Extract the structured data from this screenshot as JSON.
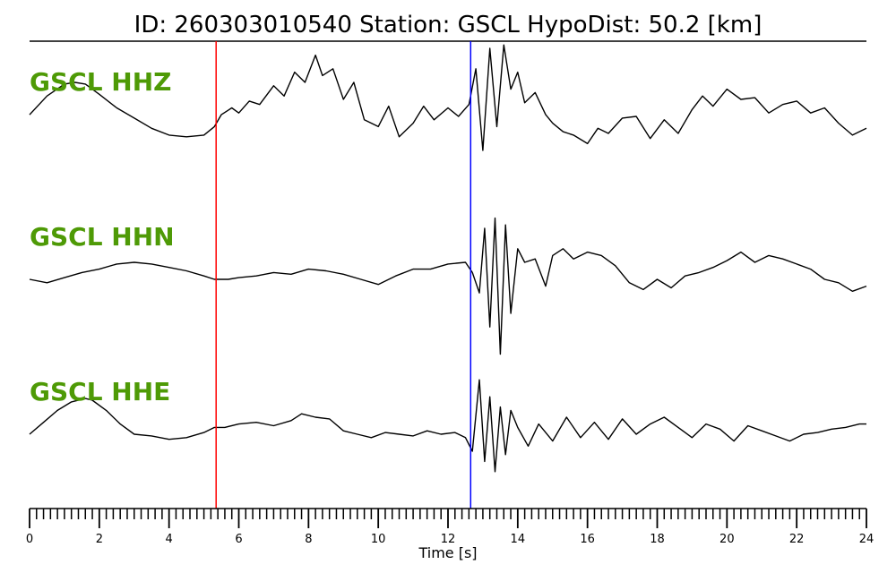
{
  "chart_data": {
    "type": "line",
    "title": "ID: 260303010540   Station: GSCL   HypoDist:     50.2 [km]",
    "xlabel": "Time [s]",
    "ylabel": "",
    "xlim": [
      0,
      24
    ],
    "x_ticks": [
      "0",
      "2",
      "4",
      "6",
      "8",
      "10",
      "12",
      "14",
      "16",
      "18",
      "20",
      "22",
      "24"
    ],
    "grid": false,
    "label_color": "#4e9a06",
    "markers": [
      {
        "time": 5.35,
        "color": "#ff0000"
      },
      {
        "time": 12.65,
        "color": "#0000ff"
      }
    ],
    "series": [
      {
        "name": "GSCL HHZ",
        "x": [
          0,
          0.5,
          1.0,
          1.3,
          1.6,
          2.0,
          2.5,
          3.0,
          3.5,
          4.0,
          4.5,
          5.0,
          5.3,
          5.5,
          5.8,
          6.0,
          6.3,
          6.6,
          7.0,
          7.3,
          7.6,
          7.9,
          8.2,
          8.4,
          8.7,
          9.0,
          9.3,
          9.6,
          10.0,
          10.3,
          10.6,
          11.0,
          11.3,
          11.6,
          12.0,
          12.3,
          12.6,
          12.8,
          13.0,
          13.2,
          13.4,
          13.6,
          13.8,
          14.0,
          14.2,
          14.5,
          14.8,
          15.0,
          15.3,
          15.6,
          16.0,
          16.3,
          16.6,
          17.0,
          17.4,
          17.8,
          18.2,
          18.6,
          19.0,
          19.3,
          19.6,
          20.0,
          20.4,
          20.8,
          21.2,
          21.6,
          22.0,
          22.4,
          22.8,
          23.2,
          23.6,
          24.0
        ],
        "y": [
          0.05,
          0.6,
          0.95,
          1.0,
          0.95,
          0.65,
          0.25,
          -0.05,
          -0.35,
          -0.55,
          -0.6,
          -0.55,
          -0.3,
          0.05,
          0.25,
          0.1,
          0.45,
          0.35,
          0.9,
          0.6,
          1.3,
          1.0,
          1.8,
          1.2,
          1.4,
          0.5,
          1.0,
          -0.1,
          -0.3,
          0.3,
          -0.6,
          -0.2,
          0.3,
          -0.1,
          0.25,
          0.0,
          0.35,
          1.4,
          -1.0,
          2.0,
          -0.3,
          2.1,
          0.8,
          1.3,
          0.4,
          0.7,
          0.05,
          -0.2,
          -0.45,
          -0.55,
          -0.8,
          -0.35,
          -0.5,
          -0.05,
          0.0,
          -0.65,
          -0.1,
          -0.5,
          0.2,
          0.6,
          0.3,
          0.8,
          0.5,
          0.55,
          0.1,
          0.35,
          0.45,
          0.1,
          0.25,
          -0.2,
          -0.55,
          -0.35
        ]
      },
      {
        "name": "GSCL HHN",
        "x": [
          0,
          0.5,
          1.0,
          1.5,
          2.0,
          2.5,
          3.0,
          3.5,
          4.0,
          4.5,
          5.0,
          5.3,
          5.7,
          6.0,
          6.5,
          7.0,
          7.5,
          8.0,
          8.5,
          9.0,
          9.5,
          10.0,
          10.5,
          11.0,
          11.5,
          12.0,
          12.5,
          12.7,
          12.9,
          13.05,
          13.2,
          13.35,
          13.5,
          13.65,
          13.8,
          14.0,
          14.2,
          14.5,
          14.8,
          15.0,
          15.3,
          15.6,
          16.0,
          16.4,
          16.8,
          17.2,
          17.6,
          18.0,
          18.4,
          18.8,
          19.2,
          19.6,
          20.0,
          20.4,
          20.8,
          21.2,
          21.6,
          22.0,
          22.4,
          22.8,
          23.2,
          23.6,
          24.0
        ],
        "y": [
          0.0,
          -0.1,
          0.05,
          0.2,
          0.3,
          0.45,
          0.5,
          0.45,
          0.35,
          0.25,
          0.1,
          0.0,
          0.0,
          0.05,
          0.1,
          0.2,
          0.15,
          0.3,
          0.25,
          0.15,
          0.0,
          -0.15,
          0.1,
          0.3,
          0.3,
          0.45,
          0.5,
          0.2,
          -0.4,
          1.5,
          -1.4,
          1.8,
          -2.2,
          1.6,
          -1.0,
          0.9,
          0.5,
          0.6,
          -0.2,
          0.7,
          0.9,
          0.6,
          0.8,
          0.7,
          0.4,
          -0.1,
          -0.3,
          0.0,
          -0.25,
          0.1,
          0.2,
          0.35,
          0.55,
          0.8,
          0.5,
          0.7,
          0.6,
          0.45,
          0.3,
          0.0,
          -0.1,
          -0.35,
          -0.2
        ]
      },
      {
        "name": "GSCL HHE",
        "x": [
          0,
          0.4,
          0.8,
          1.2,
          1.6,
          1.8,
          2.2,
          2.6,
          3.0,
          3.5,
          4.0,
          4.5,
          5.0,
          5.3,
          5.6,
          6.0,
          6.5,
          7.0,
          7.5,
          7.8,
          8.2,
          8.6,
          9.0,
          9.4,
          9.8,
          10.2,
          10.6,
          11.0,
          11.4,
          11.8,
          12.2,
          12.5,
          12.7,
          12.9,
          13.05,
          13.2,
          13.35,
          13.5,
          13.65,
          13.8,
          14.0,
          14.3,
          14.6,
          15.0,
          15.4,
          15.8,
          16.2,
          16.6,
          17.0,
          17.4,
          17.8,
          18.2,
          18.6,
          19.0,
          19.4,
          19.8,
          20.2,
          20.6,
          21.0,
          21.4,
          21.8,
          22.2,
          22.6,
          23.0,
          23.4,
          23.8,
          24.0
        ],
        "y": [
          0.0,
          0.35,
          0.7,
          0.95,
          1.05,
          1.0,
          0.7,
          0.3,
          0.0,
          -0.05,
          -0.15,
          -0.1,
          0.05,
          0.2,
          0.2,
          0.3,
          0.35,
          0.25,
          0.4,
          0.6,
          0.5,
          0.45,
          0.1,
          0.0,
          -0.1,
          0.05,
          0.0,
          -0.05,
          0.1,
          0.0,
          0.05,
          -0.1,
          -0.5,
          1.6,
          -0.8,
          1.1,
          -1.1,
          0.8,
          -0.6,
          0.7,
          0.2,
          -0.35,
          0.3,
          -0.2,
          0.5,
          -0.1,
          0.35,
          -0.15,
          0.45,
          0.0,
          0.3,
          0.5,
          0.2,
          -0.1,
          0.3,
          0.15,
          -0.2,
          0.25,
          0.1,
          -0.05,
          -0.2,
          0.0,
          0.05,
          0.15,
          0.2,
          0.3,
          0.3
        ]
      }
    ]
  }
}
